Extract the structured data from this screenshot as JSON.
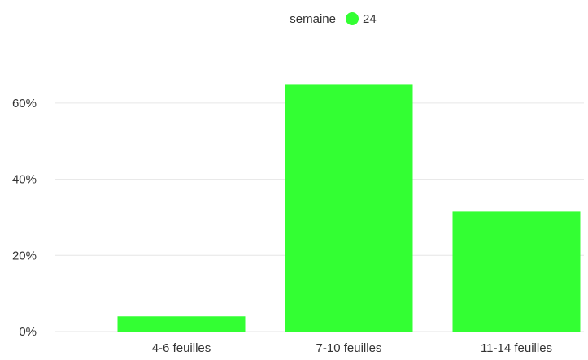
{
  "chart_data": {
    "type": "bar",
    "categories": [
      "4-6 feuilles",
      "7-10 feuilles",
      "11-14 feuilles"
    ],
    "series": [
      {
        "name": "24",
        "values": [
          4,
          65,
          31.5
        ],
        "color": "#33ff33"
      }
    ],
    "legend": {
      "title": "semaine",
      "placement": "top-center"
    },
    "ylim": [
      0,
      70
    ],
    "yticks": [
      0,
      20,
      40,
      60
    ],
    "ytick_labels": [
      "0%",
      "20%",
      "40%",
      "60%"
    ],
    "grid": true,
    "colors": {
      "bar": "#33ff33",
      "grid": "#e6e6e6",
      "text": "#333333"
    }
  }
}
